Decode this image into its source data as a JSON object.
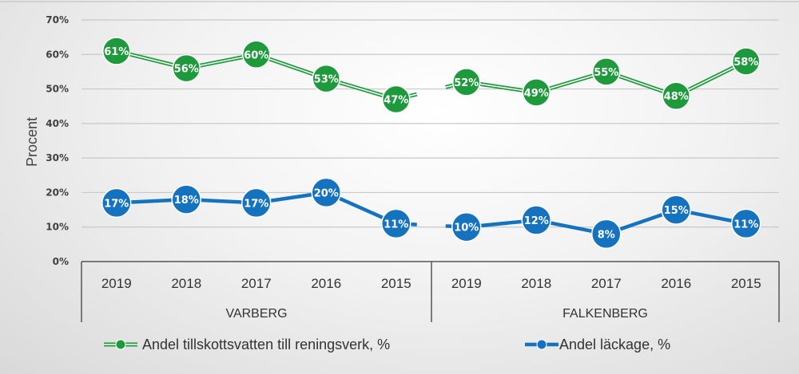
{
  "chart_data": {
    "type": "line",
    "ylabel": "Procent",
    "ylim": [
      0,
      70
    ],
    "yticks": [
      "0%",
      "10%",
      "20%",
      "30%",
      "40%",
      "50%",
      "60%",
      "70%"
    ],
    "groups": [
      {
        "name": "VARBERG",
        "categories": [
          "2019",
          "2018",
          "2017",
          "2016",
          "2015"
        ]
      },
      {
        "name": "FALKENBERG",
        "categories": [
          "2019",
          "2018",
          "2017",
          "2016",
          "2015"
        ]
      }
    ],
    "series": [
      {
        "name": "Andel tillskottsvatten till reningsverk, %",
        "color": "#1e9a3c",
        "values": [
          [
            61,
            56,
            60,
            53,
            47
          ],
          [
            52,
            49,
            55,
            48,
            58
          ]
        ],
        "labels": [
          [
            "61%",
            "56%",
            "60%",
            "53%",
            "47%"
          ],
          [
            "52%",
            "49%",
            "55%",
            "48%",
            "58%"
          ]
        ]
      },
      {
        "name": "Andel läckage, %",
        "color": "#1472be",
        "values": [
          [
            17,
            18,
            17,
            20,
            11
          ],
          [
            10,
            12,
            8,
            15,
            11
          ]
        ],
        "labels": [
          [
            "17%",
            "18%",
            "17%",
            "20%",
            "11%"
          ],
          [
            "10%",
            "12%",
            "8%",
            "15%",
            "11%"
          ]
        ]
      }
    ],
    "grid": true,
    "legend": "bottom"
  }
}
